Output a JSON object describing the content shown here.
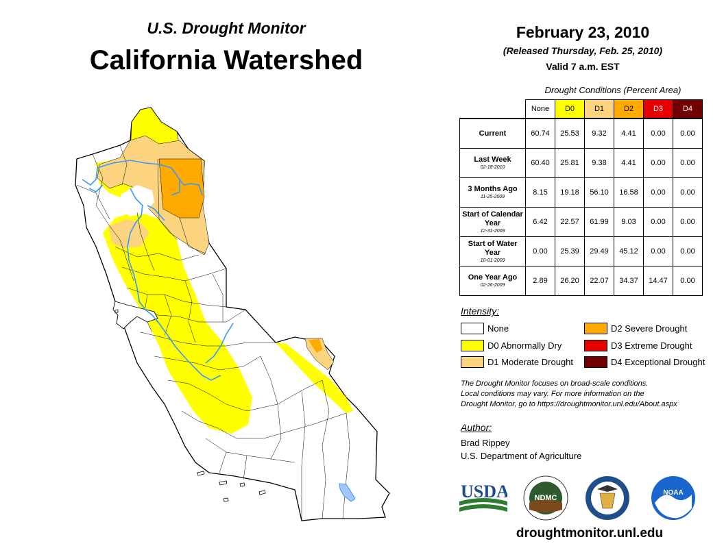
{
  "header": {
    "subtitle": "U.S. Drought Monitor",
    "title": "California Watershed",
    "date": "February 23, 2010",
    "released": "(Released Thursday, Feb. 25, 2010)",
    "valid": "Valid 7 a.m. EST"
  },
  "table": {
    "caption": "Drought Conditions (Percent Area)",
    "columns": [
      "None",
      "D0",
      "D1",
      "D2",
      "D3",
      "D4"
    ],
    "column_colors": [
      "#ffffff",
      "#ffff00",
      "#fcd37f",
      "#ffaa00",
      "#e60000",
      "#730000"
    ],
    "rows": [
      {
        "label": "Current",
        "date": "",
        "values": [
          "60.74",
          "25.53",
          "9.32",
          "4.41",
          "0.00",
          "0.00"
        ]
      },
      {
        "label": "Last Week",
        "date": "02-18-2010",
        "values": [
          "60.40",
          "25.81",
          "9.38",
          "4.41",
          "0.00",
          "0.00"
        ]
      },
      {
        "label": "3 Months Ago",
        "date": "11-25-2009",
        "values": [
          "8.15",
          "19.18",
          "56.10",
          "16.58",
          "0.00",
          "0.00"
        ]
      },
      {
        "label": "Start of Calendar Year",
        "date": "12-31-2009",
        "values": [
          "6.42",
          "22.57",
          "61.99",
          "9.03",
          "0.00",
          "0.00"
        ]
      },
      {
        "label": "Start of Water Year",
        "date": "10-01-2009",
        "values": [
          "0.00",
          "25.39",
          "29.49",
          "45.12",
          "0.00",
          "0.00"
        ]
      },
      {
        "label": "One Year Ago",
        "date": "02-26-2009",
        "values": [
          "2.89",
          "26.20",
          "22.07",
          "34.37",
          "14.47",
          "0.00"
        ]
      }
    ]
  },
  "legend": {
    "heading": "Intensity:",
    "items": [
      {
        "label": "None",
        "color": "#ffffff"
      },
      {
        "label": "D0 Abnormally Dry",
        "color": "#ffff00"
      },
      {
        "label": "D1 Moderate Drought",
        "color": "#fcd37f"
      },
      {
        "label": "D2 Severe Drought",
        "color": "#ffaa00"
      },
      {
        "label": "D3 Extreme Drought",
        "color": "#e60000"
      },
      {
        "label": "D4 Exceptional Drought",
        "color": "#730000"
      }
    ]
  },
  "note": {
    "line1": "The Drought Monitor focuses on broad-scale conditions.",
    "line2": "Local conditions may vary. For more information on the",
    "line3": "Drought Monitor, go to https://droughtmonitor.unl.edu/About.aspx"
  },
  "author": {
    "heading": "Author:",
    "name": "Brad Rippey",
    "org": "U.S. Department of Agriculture"
  },
  "logos": {
    "usda": "USDA",
    "ndmc": "NDMC",
    "noaa": "NOAA"
  },
  "footer_url": "droughtmonitor.unl.edu",
  "colors": {
    "water": "#3399ff"
  }
}
